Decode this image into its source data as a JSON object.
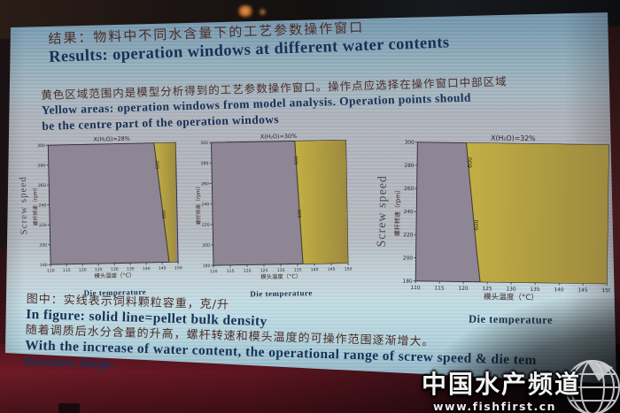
{
  "slide": {
    "title_cn": "结果：物料中不同水含量下的工艺参数操作窗口",
    "title_en": "Results: operation windows at different water contents",
    "subtitle_cn": "黄色区域范围内是模型分析得到的工艺参数操作窗口。操作点应选择在操作窗口中部区域",
    "subtitle_en_line1": "Yellow areas: operation windows from model analysis. Operation points should",
    "subtitle_en_line2": "be the centre part of the operation windows",
    "caption_cn_1": "图中：实线表示饲料颗粒容重，克/升",
    "caption_en_1": "In figure: solid line=pellet bulk density",
    "caption_cn_2": "随着调质后水分含量的升高，螺杆转速和模头温度的可操作范围逐渐增大。",
    "caption_en_2": "With the increase of water content, the operational range of screw speed & die tem",
    "caption_en_3": "becomes large."
  },
  "watermark": {
    "brand": "中国水产频道",
    "url": "www.fishfirst.cn"
  },
  "colors": {
    "plot_bg": "#8e8694",
    "yellow": "#c6b140",
    "yellow_dark": "#9e8a3a",
    "axis": "#2e2933",
    "tick_text": "#241f2b",
    "label_cn": "#3a2527",
    "label_en": "#1e3250",
    "ylabel": "#4e4754",
    "contour": "#2f2a1a"
  },
  "chart_data": [
    {
      "type": "area",
      "title": "X(H₂O)=28%",
      "xlabel_cn": "模头温度（°C）",
      "xlabel_en": "Die temperature",
      "ylabel_en": "Screw speed",
      "ylabel_cn": "螺杆转速（rpm）",
      "xlim": [
        110,
        150
      ],
      "ylim": [
        180,
        300
      ],
      "x_ticks": [
        110,
        115,
        120,
        125,
        130,
        135,
        140,
        145,
        150
      ],
      "y_ticks": [
        180,
        200,
        220,
        240,
        260,
        280,
        300
      ],
      "window": [
        [
          143.2,
          300
        ],
        [
          150,
          300
        ],
        [
          149.3,
          180
        ],
        [
          147.2,
          180
        ]
      ],
      "boundary": [
        [
          143.2,
          300
        ],
        [
          147.2,
          180
        ]
      ],
      "contour_value": "600",
      "contour_label_positions": [
        [
          144.6,
          278
        ],
        [
          146.3,
          228
        ]
      ]
    },
    {
      "type": "area",
      "title": "X(H₂O)=30%",
      "xlabel_cn": "模头温度（°C）",
      "xlabel_en": "Die temperature",
      "ylabel_en": "Screw speed",
      "ylabel_cn": "螺杆转速（rpm）",
      "xlim": [
        110,
        150
      ],
      "ylim": [
        180,
        300
      ],
      "x_ticks": [
        110,
        115,
        120,
        125,
        130,
        135,
        140,
        145,
        150
      ],
      "y_ticks": [
        180,
        200,
        220,
        240,
        260,
        280,
        300
      ],
      "window": [
        [
          134.8,
          300
        ],
        [
          150,
          300
        ],
        [
          150,
          180
        ],
        [
          136.6,
          180
        ]
      ],
      "boundary": [
        [
          134.8,
          300
        ],
        [
          136.6,
          180
        ]
      ],
      "contour_value": "600",
      "contour_label_positions": [
        [
          135.6,
          281
        ],
        [
          136.3,
          229
        ]
      ]
    },
    {
      "type": "area",
      "title": "X(H₂O)=32%",
      "xlabel_cn": "模头温度（°C）",
      "xlabel_en": "Die temperature",
      "ylabel_en": "Screw speed",
      "ylabel_cn": "螺杆转速（rpm）",
      "xlim": [
        110,
        150
      ],
      "ylim": [
        180,
        300
      ],
      "x_ticks": [
        110,
        115,
        120,
        125,
        130,
        135,
        140,
        145,
        150
      ],
      "y_ticks": [
        180,
        200,
        220,
        240,
        260,
        280,
        300
      ],
      "window": [
        [
          120.2,
          300
        ],
        [
          121.2,
          262
        ],
        [
          122.7,
          206
        ],
        [
          123.5,
          180
        ],
        [
          150,
          180
        ],
        [
          150,
          300
        ]
      ],
      "boundary": [
        [
          120.2,
          300
        ],
        [
          121.2,
          262
        ],
        [
          122.7,
          206
        ],
        [
          123.5,
          180
        ]
      ],
      "contour_value": "600",
      "contour_label_positions": [
        [
          121.4,
          283
        ],
        [
          122.9,
          229
        ]
      ]
    }
  ]
}
